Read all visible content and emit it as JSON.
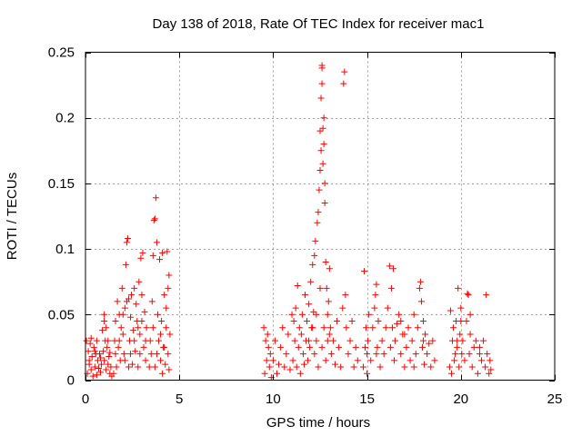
{
  "chart_data": {
    "type": "scatter",
    "title": "Day 138 of 2018, Rate Of TEC Index for receiver mac1",
    "xlabel": "GPS time / hours",
    "ylabel": "ROTI / TECUs",
    "xlim": [
      0,
      25
    ],
    "ylim": [
      0,
      0.25
    ],
    "xticks": [
      0,
      5,
      10,
      15,
      20,
      25
    ],
    "xtick_labels": [
      "0",
      "5",
      "10",
      "15",
      "20",
      "25"
    ],
    "yticks": [
      0,
      0.05,
      0.1,
      0.15,
      0.2,
      0.25
    ],
    "ytick_labels": [
      "0",
      "0.05",
      "0.1",
      "0.15",
      "0.2",
      "0.25"
    ],
    "grid": true,
    "marker": "plus",
    "color": "#ff0000",
    "series": [
      {
        "name": "ROTI",
        "points": [
          [
            0.05,
            0.03
          ],
          [
            0.1,
            0.005
          ],
          [
            0.15,
            0.022
          ],
          [
            0.2,
            0.012
          ],
          [
            0.25,
            0.028
          ],
          [
            0.3,
            0.008
          ],
          [
            0.35,
            0.018
          ],
          [
            0.4,
            0.003
          ],
          [
            0.45,
            0.025
          ],
          [
            0.5,
            0.01
          ],
          [
            0.55,
            0.02
          ],
          [
            0.6,
            0.004
          ],
          [
            0.65,
            0.015
          ],
          [
            0.7,
            0.009
          ],
          [
            0.75,
            0.02
          ],
          [
            0.8,
            0.006
          ],
          [
            0.85,
            0.012
          ],
          [
            0.9,
            0.038
          ],
          [
            0.95,
            0.022
          ],
          [
            1.0,
            0.015
          ],
          [
            1.05,
            0.03
          ],
          [
            1.1,
            0.008
          ],
          [
            1.15,
            0.025
          ],
          [
            1.2,
            0.012
          ],
          [
            1.25,
            0.018
          ],
          [
            1.3,
            0.005
          ],
          [
            1.35,
            0.01
          ],
          [
            1.4,
            0.003
          ],
          [
            0.3,
            0.032
          ],
          [
            0.6,
            0.03
          ],
          [
            1.0,
            0.045
          ],
          [
            1.1,
            0.04
          ],
          [
            1.0,
            0.05
          ],
          [
            0.2,
            0.015
          ],
          [
            0.5,
            0.022
          ],
          [
            0.8,
            0.017
          ],
          [
            1.2,
            0.03
          ],
          [
            1.3,
            0.021
          ],
          [
            1.5,
            0.005
          ],
          [
            1.55,
            0.03
          ],
          [
            1.6,
            0.045
          ],
          [
            1.65,
            0.01
          ],
          [
            1.7,
            0.06
          ],
          [
            1.75,
            0.025
          ],
          [
            1.8,
            0.05
          ],
          [
            1.85,
            0.015
          ],
          [
            1.9,
            0.04
          ],
          [
            1.95,
            0.07
          ],
          [
            2.0,
            0.035
          ],
          [
            2.05,
            0.02
          ],
          [
            2.1,
            0.055
          ],
          [
            2.15,
            0.088
          ],
          [
            2.2,
            0.105
          ],
          [
            2.25,
            0.108
          ],
          [
            2.3,
            0.062
          ],
          [
            2.35,
            0.03
          ],
          [
            2.4,
            0.048
          ],
          [
            2.45,
            0.065
          ],
          [
            2.5,
            0.012
          ],
          [
            2.55,
            0.038
          ],
          [
            2.6,
            0.07
          ],
          [
            2.65,
            0.022
          ],
          [
            2.7,
            0.058
          ],
          [
            2.75,
            0.045
          ],
          [
            2.8,
            0.01
          ],
          [
            2.85,
            0.075
          ],
          [
            2.9,
            0.035
          ],
          [
            2.95,
            0.093
          ],
          [
            3.0,
            0.065
          ],
          [
            3.05,
            0.097
          ],
          [
            3.1,
            0.025
          ],
          [
            3.15,
            0.052
          ],
          [
            3.2,
            0.015
          ],
          [
            3.25,
            0.04
          ],
          [
            1.6,
            0.02
          ],
          [
            1.8,
            0.03
          ],
          [
            2.0,
            0.05
          ],
          [
            2.2,
            0.06
          ],
          [
            2.4,
            0.02
          ],
          [
            2.6,
            0.03
          ],
          [
            2.8,
            0.04
          ],
          [
            3.0,
            0.045
          ],
          [
            3.2,
            0.03
          ],
          [
            2.1,
            0.015
          ],
          [
            2.3,
            0.01
          ],
          [
            2.9,
            0.02
          ],
          [
            3.4,
            0.01
          ],
          [
            3.45,
            0.03
          ],
          [
            3.5,
            0.02
          ],
          [
            3.55,
            0.06
          ],
          [
            3.6,
            0.095
          ],
          [
            3.65,
            0.122
          ],
          [
            3.7,
            0.123
          ],
          [
            3.75,
            0.139
          ],
          [
            3.8,
            0.105
          ],
          [
            3.85,
            0.05
          ],
          [
            3.9,
            0.03
          ],
          [
            3.95,
            0.092
          ],
          [
            4.0,
            0.015
          ],
          [
            4.05,
            0.045
          ],
          [
            4.1,
            0.097
          ],
          [
            4.15,
            0.025
          ],
          [
            4.2,
            0.065
          ],
          [
            4.25,
            0.012
          ],
          [
            4.3,
            0.055
          ],
          [
            4.35,
            0.098
          ],
          [
            4.4,
            0.07
          ],
          [
            4.45,
            0.08
          ],
          [
            4.5,
            0.035
          ],
          [
            3.6,
            0.04
          ],
          [
            3.8,
            0.02
          ],
          [
            4.0,
            0.035
          ],
          [
            4.2,
            0.025
          ],
          [
            4.4,
            0.02
          ],
          [
            4.3,
            0.04
          ],
          [
            3.7,
            0.01
          ],
          [
            4.1,
            0.005
          ],
          [
            4.45,
            0.008
          ],
          [
            9.5,
            0.04
          ],
          [
            9.55,
            0.005
          ],
          [
            9.6,
            0.03
          ],
          [
            9.65,
            0.015
          ],
          [
            9.7,
            0.035
          ],
          [
            9.75,
            0.025
          ],
          [
            9.8,
            0.01
          ],
          [
            9.85,
            0.02
          ],
          [
            9.9,
            0.002
          ],
          [
            10.0,
            0.015
          ],
          [
            10.1,
            0.03
          ],
          [
            10.2,
            0.005
          ],
          [
            10.3,
            0.012
          ],
          [
            10.4,
            0.025
          ],
          [
            10.5,
            0.04
          ],
          [
            10.6,
            0.01
          ],
          [
            10.7,
            0.02
          ],
          [
            10.8,
            0.035
          ],
          [
            10.9,
            0.008
          ],
          [
            11.0,
            0.05
          ],
          [
            11.05,
            0.015
          ],
          [
            11.1,
            0.045
          ],
          [
            11.15,
            0.03
          ],
          [
            11.2,
            0.055
          ],
          [
            11.25,
            0.01
          ],
          [
            11.3,
            0.072
          ],
          [
            11.35,
            0.025
          ],
          [
            11.4,
            0.04
          ],
          [
            11.45,
            0.005
          ],
          [
            11.5,
            0.035
          ],
          [
            11.55,
            0.05
          ],
          [
            11.6,
            0.02
          ],
          [
            11.65,
            0.012
          ],
          [
            11.7,
            0.065
          ],
          [
            11.75,
            0.03
          ],
          [
            11.8,
            0.045
          ],
          [
            11.85,
            0.015
          ],
          [
            11.9,
            0.058
          ],
          [
            11.95,
            0.025
          ],
          [
            12.0,
            0.075
          ],
          [
            12.05,
            0.04
          ],
          [
            12.1,
            0.088
          ],
          [
            12.15,
            0.052
          ],
          [
            12.2,
            0.095
          ],
          [
            12.25,
            0.106
          ],
          [
            12.3,
            0.03
          ],
          [
            12.35,
            0.12
          ],
          [
            12.4,
            0.128
          ],
          [
            12.45,
            0.145
          ],
          [
            12.5,
            0.16
          ],
          [
            12.5,
            0.19
          ],
          [
            12.55,
            0.175
          ],
          [
            12.55,
            0.215
          ],
          [
            12.6,
            0.226
          ],
          [
            12.6,
            0.238
          ],
          [
            12.6,
            0.24
          ],
          [
            12.65,
            0.165
          ],
          [
            12.65,
            0.192
          ],
          [
            12.7,
            0.2
          ],
          [
            12.7,
            0.18
          ],
          [
            12.75,
            0.15
          ],
          [
            12.75,
            0.135
          ],
          [
            12.8,
            0.09
          ],
          [
            12.85,
            0.07
          ],
          [
            12.9,
            0.05
          ],
          [
            12.95,
            0.06
          ],
          [
            13.0,
            0.085
          ],
          [
            13.05,
            0.04
          ],
          [
            13.1,
            0.02
          ],
          [
            13.2,
            0.03
          ],
          [
            13.3,
            0.012
          ],
          [
            13.4,
            0.045
          ],
          [
            13.5,
            0.025
          ],
          [
            13.6,
            0.01
          ],
          [
            13.7,
            0.055
          ],
          [
            13.75,
            0.226
          ],
          [
            13.8,
            0.235
          ],
          [
            13.85,
            0.065
          ],
          [
            13.9,
            0.04
          ],
          [
            14.0,
            0.02
          ],
          [
            14.1,
            0.03
          ],
          [
            14.2,
            0.045
          ],
          [
            14.3,
            0.01
          ],
          [
            14.4,
            0.025
          ],
          [
            14.5,
            0.015
          ],
          [
            12.3,
            0.05
          ],
          [
            12.5,
            0.07
          ],
          [
            12.7,
            0.04
          ],
          [
            12.9,
            0.03
          ],
          [
            12.2,
            0.02
          ],
          [
            12.4,
            0.01
          ],
          [
            12.6,
            0.025
          ],
          [
            12.8,
            0.015
          ],
          [
            13.0,
            0.035
          ],
          [
            11.9,
            0.03
          ],
          [
            12.1,
            0.04
          ],
          [
            14.8,
            0.01
          ],
          [
            14.85,
            0.083
          ],
          [
            14.9,
            0.025
          ],
          [
            14.95,
            0.04
          ],
          [
            15.0,
            0.005
          ],
          [
            15.05,
            0.03
          ],
          [
            15.1,
            0.05
          ],
          [
            15.2,
            0.015
          ],
          [
            15.3,
            0.04
          ],
          [
            15.4,
            0.055
          ],
          [
            15.45,
            0.065
          ],
          [
            15.5,
            0.073
          ],
          [
            15.55,
            0.025
          ],
          [
            15.6,
            0.045
          ],
          [
            15.7,
            0.01
          ],
          [
            15.8,
            0.03
          ],
          [
            15.9,
            0.02
          ],
          [
            16.0,
            0.04
          ],
          [
            16.1,
            0.055
          ],
          [
            16.2,
            0.087
          ],
          [
            16.25,
            0.025
          ],
          [
            16.3,
            0.07
          ],
          [
            16.35,
            0.04
          ],
          [
            16.4,
            0.085
          ],
          [
            16.45,
            0.015
          ],
          [
            16.5,
            0.03
          ],
          [
            16.6,
            0.043
          ],
          [
            16.7,
            0.05
          ],
          [
            16.8,
            0.02
          ],
          [
            16.9,
            0.035
          ],
          [
            17.0,
            0.01
          ],
          [
            17.1,
            0.025
          ],
          [
            17.2,
            0.04
          ],
          [
            17.3,
            0.015
          ],
          [
            17.4,
            0.03
          ],
          [
            17.5,
            0.05
          ],
          [
            17.6,
            0.02
          ],
          [
            17.7,
            0.04
          ],
          [
            17.8,
            0.07
          ],
          [
            17.85,
            0.075
          ],
          [
            17.9,
            0.06
          ],
          [
            17.95,
            0.025
          ],
          [
            18.0,
            0.045
          ],
          [
            18.05,
            0.012
          ],
          [
            18.1,
            0.035
          ],
          [
            18.2,
            0.02
          ],
          [
            18.3,
            0.028
          ],
          [
            18.4,
            0.01
          ],
          [
            18.5,
            0.03
          ],
          [
            18.6,
            0.015
          ],
          [
            16.8,
            0.045
          ],
          [
            17.5,
            0.01
          ],
          [
            17.0,
            0.035
          ],
          [
            15.0,
            0.02
          ],
          [
            15.5,
            0.02
          ],
          [
            18.0,
            0.03
          ],
          [
            19.4,
            0.01
          ],
          [
            19.45,
            0.053
          ],
          [
            19.5,
            0.005
          ],
          [
            19.55,
            0.03
          ],
          [
            19.6,
            0.04
          ],
          [
            19.65,
            0.015
          ],
          [
            19.7,
            0.02
          ],
          [
            19.75,
            0.045
          ],
          [
            19.8,
            0.025
          ],
          [
            19.85,
            0.07
          ],
          [
            19.9,
            0.01
          ],
          [
            19.95,
            0.035
          ],
          [
            20.0,
            0.055
          ],
          [
            20.05,
            0.02
          ],
          [
            20.1,
            0.03
          ],
          [
            20.2,
            0.015
          ],
          [
            20.3,
            0.045
          ],
          [
            20.35,
            0.066
          ],
          [
            20.4,
            0.065
          ],
          [
            20.45,
            0.02
          ],
          [
            20.5,
            0.035
          ],
          [
            20.6,
            0.01
          ],
          [
            20.7,
            0.025
          ],
          [
            20.8,
            0.03
          ],
          [
            20.9,
            0.005
          ],
          [
            21.0,
            0.02
          ],
          [
            21.1,
            0.015
          ],
          [
            21.2,
            0.03
          ],
          [
            21.3,
            0.01
          ],
          [
            21.35,
            0.065
          ],
          [
            21.4,
            0.02
          ],
          [
            21.5,
            0.005
          ],
          [
            21.55,
            0.015
          ],
          [
            21.6,
            0.008
          ],
          [
            20.0,
            0.045
          ],
          [
            19.8,
            0.03
          ],
          [
            20.5,
            0.05
          ],
          [
            21.0,
            0.025
          ]
        ]
      }
    ]
  }
}
